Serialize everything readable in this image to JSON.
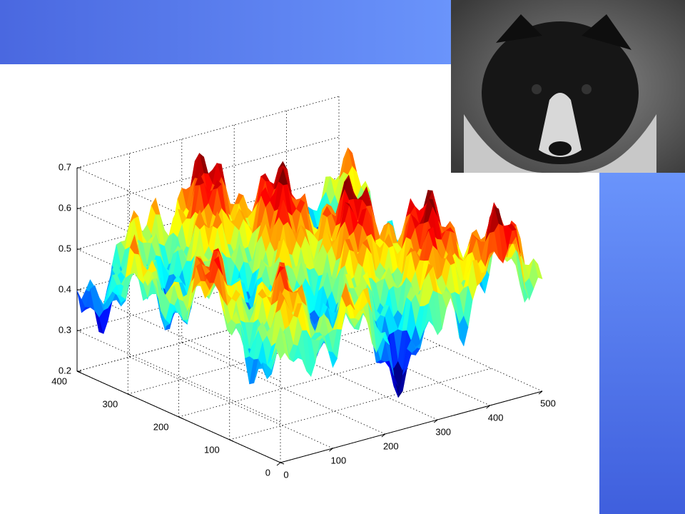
{
  "plot": {
    "xlim": [
      0,
      500
    ],
    "xticks": [
      0,
      100,
      200,
      300,
      400,
      500
    ],
    "ylim": [
      0,
      400
    ],
    "yticks": [
      0,
      100,
      200,
      300,
      400
    ],
    "zlim": [
      0.2,
      0.7
    ],
    "zticks": [
      0.2,
      0.3,
      0.4,
      0.5,
      0.6,
      0.7
    ]
  }
}
